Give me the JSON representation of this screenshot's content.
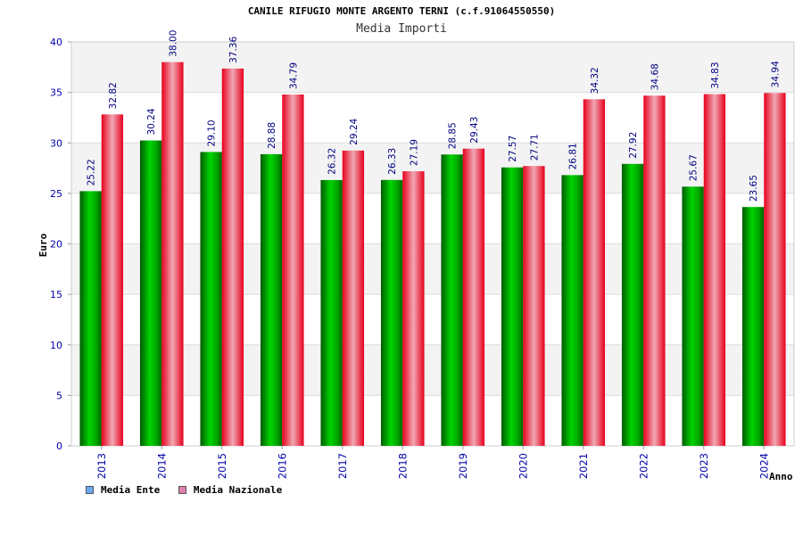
{
  "chart_data": {
    "type": "bar",
    "title": "CANILE RIFUGIO MONTE ARGENTO TERNI (c.f.91064550550)",
    "subtitle": "Media Importi",
    "xlabel": "Anno",
    "ylabel": "Euro",
    "ylim": [
      0,
      40
    ],
    "yticks": [
      0,
      5,
      10,
      15,
      20,
      25,
      30,
      35,
      40
    ],
    "grid": true,
    "legend_position": "bottom-left",
    "categories": [
      "2013",
      "2014",
      "2015",
      "2016",
      "2017",
      "2018",
      "2019",
      "2020",
      "2021",
      "2022",
      "2023",
      "2024"
    ],
    "series": [
      {
        "name": "Media Ente",
        "color": "#00b000",
        "legend_color": "#6aa8f0",
        "values": [
          25.22,
          30.24,
          29.1,
          28.88,
          26.32,
          26.33,
          28.85,
          27.57,
          26.81,
          27.92,
          25.67,
          23.65
        ],
        "labels": [
          "25.22",
          "30.24",
          "29.10",
          "28.88",
          "26.32",
          "26.33",
          "28.85",
          "27.57",
          "26.81",
          "27.92",
          "25.67",
          "23.65"
        ]
      },
      {
        "name": "Media Nazionale",
        "color": "#ee1122",
        "legend_color": "#e080b0",
        "values": [
          32.82,
          38.0,
          37.36,
          34.79,
          29.24,
          27.19,
          29.43,
          27.71,
          34.32,
          34.68,
          34.83,
          34.94
        ],
        "labels": [
          "32.82",
          "38.00",
          "37.36",
          "34.79",
          "29.24",
          "27.19",
          "29.43",
          "27.71",
          "34.32",
          "34.68",
          "34.83",
          "34.94"
        ]
      }
    ]
  }
}
